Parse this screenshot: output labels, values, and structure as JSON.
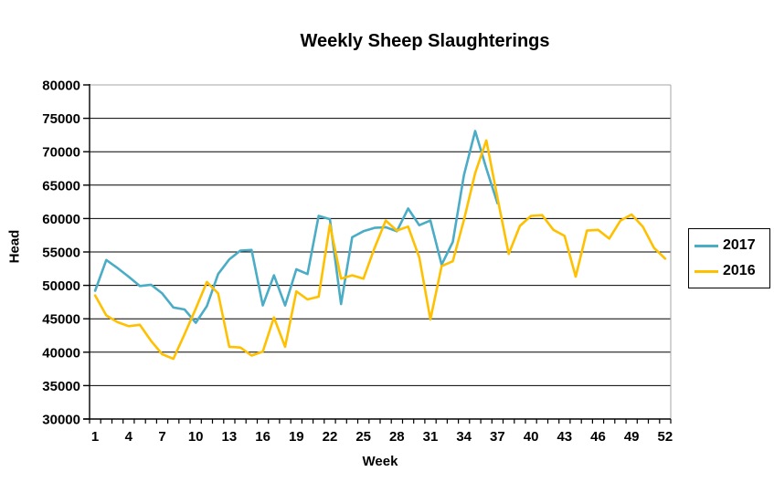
{
  "chart_data": {
    "type": "line",
    "title": "Weekly Sheep Slaughterings",
    "xlabel": "Week",
    "ylabel": "Head",
    "ylim": [
      30000,
      80000
    ],
    "y_tick_step": 5000,
    "y_ticks": [
      30000,
      35000,
      40000,
      45000,
      50000,
      55000,
      60000,
      65000,
      70000,
      75000,
      80000
    ],
    "x_ticks": [
      1,
      4,
      7,
      10,
      13,
      16,
      19,
      22,
      25,
      28,
      31,
      34,
      37,
      40,
      43,
      46,
      49,
      52
    ],
    "x_categories_total": 52,
    "grid": true,
    "legend_position": "right",
    "series": [
      {
        "name": "2017",
        "color": "#4BACC6",
        "weeks_start": 1,
        "values": [
          49200,
          53800,
          52600,
          51300,
          49900,
          50100,
          48800,
          46700,
          46400,
          44400,
          46900,
          51700,
          53900,
          55200,
          55300,
          47000,
          51500,
          47000,
          52400,
          51700,
          60400,
          59900,
          47200,
          57200,
          58100,
          58600,
          58700,
          58100,
          61500,
          59000,
          59700,
          53100,
          56500,
          66500,
          73100,
          67500,
          62300
        ]
      },
      {
        "name": "2016",
        "color": "#FFC000",
        "weeks_start": 1,
        "values": [
          48500,
          45500,
          44500,
          43900,
          44100,
          41700,
          39700,
          39000,
          42700,
          46500,
          50500,
          48800,
          40800,
          40700,
          39500,
          40100,
          45200,
          40800,
          49100,
          47900,
          48300,
          59100,
          51000,
          51500,
          51000,
          55600,
          59700,
          58200,
          58800,
          54200,
          44900,
          52900,
          53600,
          59800,
          66800,
          71700,
          63100,
          54700,
          58900,
          60400,
          60500,
          58300,
          57400,
          51300,
          58200,
          58300,
          57000,
          59700,
          60600,
          58800,
          55600,
          54000
        ]
      }
    ]
  }
}
